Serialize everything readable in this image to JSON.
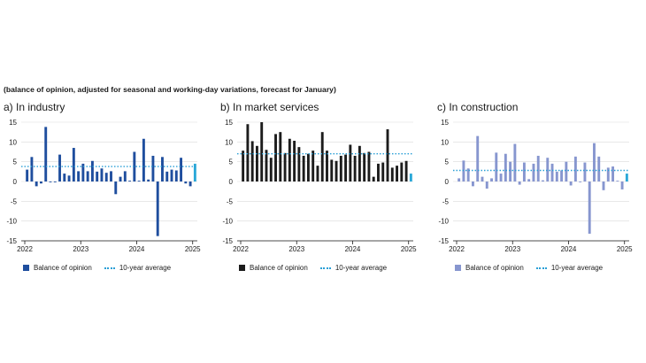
{
  "subtitle": "(balance of opinion, adjusted for seasonal and working-day variations, forecast for January)",
  "legend": {
    "balance": "Balance of opinion",
    "average": "10-year average"
  },
  "colors": {
    "average_line": "#2a9fd6",
    "forecast": "#2aa8d8"
  },
  "chart_data": [
    {
      "type": "bar",
      "title": "a)  In industry",
      "bar_color": "#1f4e9e",
      "ylim": [
        -15,
        15
      ],
      "yticks": [
        -15,
        -10,
        -5,
        0,
        5,
        10,
        15
      ],
      "xticks": [
        "2022",
        "2023",
        "2024",
        "2025"
      ],
      "average": 3.8,
      "values": [
        3,
        6.2,
        -1.2,
        -0.5,
        13.8,
        -0.2,
        -0.2,
        6.8,
        2,
        1.5,
        8.5,
        2.6,
        4.5,
        2.6,
        5.2,
        2.5,
        3.3,
        2.2,
        2.6,
        -3.2,
        1.2,
        2.6,
        0.2,
        7.5,
        0.2,
        10.8,
        0.5,
        6.5,
        -13.8,
        6.2,
        2.5,
        3,
        2.8,
        6,
        -0.5,
        -1.2,
        4.5
      ]
    },
    {
      "type": "bar",
      "title": "b)  In market services",
      "bar_color": "#1c1c1c",
      "ylim": [
        -15,
        15
      ],
      "yticks": [
        -15,
        -10,
        -5,
        0,
        5,
        10,
        15
      ],
      "xticks": [
        "2022",
        "2023",
        "2024",
        "2025"
      ],
      "average": 7,
      "values": [
        7.8,
        14.5,
        10.2,
        9,
        15,
        8,
        6,
        12,
        12.5,
        7.2,
        10.8,
        10.3,
        8.7,
        6.5,
        7,
        7.8,
        4,
        12.5,
        7.8,
        5.5,
        5.2,
        6.5,
        6.8,
        9.3,
        6.5,
        9,
        7.2,
        7.5,
        1.2,
        4.5,
        4.8,
        13.2,
        3.5,
        4,
        4.8,
        5.2,
        2
      ]
    },
    {
      "type": "bar",
      "title": "c)  In construction",
      "bar_color": "#8796cf",
      "ylim": [
        -15,
        15
      ],
      "yticks": [
        -15,
        -10,
        -5,
        0,
        5,
        10,
        15
      ],
      "xticks": [
        "2022",
        "2023",
        "2024",
        "2025"
      ],
      "average": 2.8,
      "values": [
        0.8,
        5.3,
        3.3,
        -1.2,
        11.5,
        1.2,
        -1.8,
        0.8,
        7.3,
        2,
        7,
        5,
        9.5,
        -0.8,
        4.8,
        0.6,
        4.5,
        6.5,
        0.3,
        6,
        4.5,
        2.5,
        2.8,
        5,
        -1,
        6.3,
        -0.2,
        4.8,
        -13.2,
        9.7,
        6.3,
        -2.2,
        3.5,
        3.8,
        0.2,
        -2,
        2
      ]
    }
  ]
}
